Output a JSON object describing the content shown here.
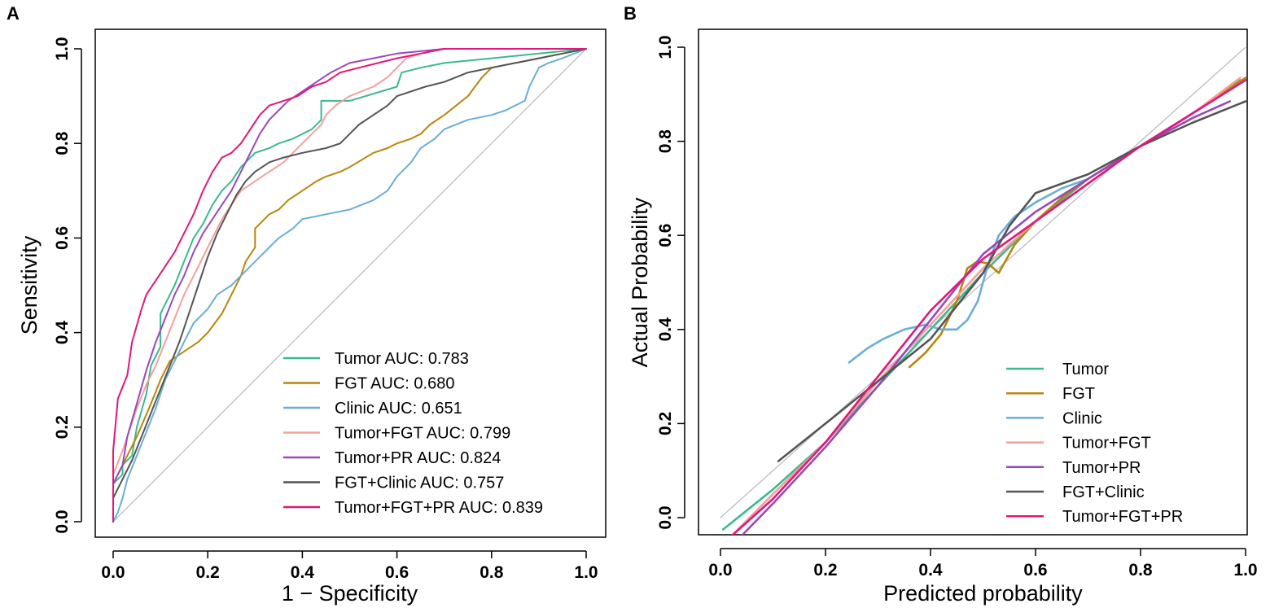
{
  "panels": {
    "a": {
      "letter": "A"
    },
    "b": {
      "letter": "B"
    }
  },
  "chart_data": [
    {
      "type": "line",
      "panel": "A",
      "xlabel": "1 − Specificity",
      "ylabel": "Sensitivity",
      "xlim": [
        0,
        1
      ],
      "ylim": [
        0,
        1
      ],
      "xticks": [
        "0.0",
        "0.2",
        "0.4",
        "0.6",
        "0.8",
        "1.0"
      ],
      "yticks": [
        "0.0",
        "0.2",
        "0.4",
        "0.6",
        "0.8",
        "1.0"
      ],
      "reference_line": "diagonal",
      "legend_position": "bottom-right",
      "series": [
        {
          "name": "Tumor",
          "label": "Tumor AUC: 0.783",
          "color": "#3cb98d",
          "x": [
            0,
            0,
            0.02,
            0.02,
            0.04,
            0.05,
            0.07,
            0.08,
            0.1,
            0.1,
            0.12,
            0.13,
            0.15,
            0.17,
            0.19,
            0.21,
            0.23,
            0.25,
            0.27,
            0.3,
            0.33,
            0.35,
            0.38,
            0.4,
            0.42,
            0.44,
            0.44,
            0.5,
            0.6,
            0.61,
            0.65,
            0.7,
            0.8,
            0.9,
            1.0
          ],
          "y": [
            0,
            0.08,
            0.1,
            0.12,
            0.14,
            0.2,
            0.27,
            0.33,
            0.37,
            0.44,
            0.48,
            0.5,
            0.55,
            0.6,
            0.63,
            0.67,
            0.7,
            0.72,
            0.75,
            0.78,
            0.79,
            0.8,
            0.81,
            0.82,
            0.83,
            0.85,
            0.89,
            0.89,
            0.92,
            0.95,
            0.96,
            0.97,
            0.98,
            0.99,
            1.0
          ]
        },
        {
          "name": "FGT",
          "label": "FGT AUC: 0.680",
          "color": "#b8860b",
          "x": [
            0,
            0,
            0.02,
            0.05,
            0.08,
            0.1,
            0.12,
            0.15,
            0.18,
            0.2,
            0.23,
            0.25,
            0.27,
            0.28,
            0.3,
            0.3,
            0.32,
            0.33,
            0.35,
            0.37,
            0.4,
            0.43,
            0.45,
            0.48,
            0.5,
            0.55,
            0.58,
            0.6,
            0.63,
            0.65,
            0.67,
            0.7,
            0.75,
            0.78,
            0.8,
            0.9,
            0.95,
            1.0
          ],
          "y": [
            0,
            0.08,
            0.12,
            0.18,
            0.25,
            0.3,
            0.34,
            0.36,
            0.38,
            0.4,
            0.44,
            0.48,
            0.52,
            0.55,
            0.58,
            0.62,
            0.64,
            0.65,
            0.66,
            0.68,
            0.7,
            0.72,
            0.73,
            0.74,
            0.75,
            0.78,
            0.79,
            0.8,
            0.81,
            0.82,
            0.84,
            0.86,
            0.9,
            0.94,
            0.96,
            0.98,
            0.99,
            1.0
          ]
        },
        {
          "name": "Clinic",
          "label": "Clinic AUC: 0.651",
          "color": "#6aaed6",
          "x": [
            0,
            0.01,
            0.02,
            0.03,
            0.05,
            0.07,
            0.09,
            0.11,
            0.13,
            0.15,
            0.17,
            0.2,
            0.22,
            0.25,
            0.28,
            0.3,
            0.33,
            0.35,
            0.38,
            0.4,
            0.45,
            0.5,
            0.55,
            0.58,
            0.6,
            0.63,
            0.65,
            0.68,
            0.7,
            0.75,
            0.8,
            0.83,
            0.85,
            0.87,
            0.88,
            0.89,
            0.9,
            0.92,
            0.95,
            1.0
          ],
          "y": [
            0,
            0.02,
            0.05,
            0.09,
            0.14,
            0.19,
            0.24,
            0.3,
            0.34,
            0.38,
            0.42,
            0.45,
            0.48,
            0.5,
            0.53,
            0.55,
            0.58,
            0.6,
            0.62,
            0.64,
            0.65,
            0.66,
            0.68,
            0.7,
            0.73,
            0.76,
            0.79,
            0.81,
            0.83,
            0.85,
            0.86,
            0.87,
            0.88,
            0.89,
            0.92,
            0.94,
            0.96,
            0.97,
            0.98,
            1.0
          ]
        },
        {
          "name": "Tumor+FGT",
          "label": "Tumor+FGT AUC: 0.799",
          "color": "#f4a09a",
          "x": [
            0,
            0,
            0.02,
            0.03,
            0.05,
            0.07,
            0.09,
            0.11,
            0.13,
            0.15,
            0.17,
            0.19,
            0.21,
            0.23,
            0.25,
            0.27,
            0.3,
            0.33,
            0.36,
            0.38,
            0.4,
            0.42,
            0.44,
            0.45,
            0.47,
            0.5,
            0.55,
            0.58,
            0.6,
            0.62,
            0.65,
            0.7,
            0.8,
            0.9,
            1.0
          ],
          "y": [
            0,
            0.1,
            0.15,
            0.18,
            0.24,
            0.29,
            0.33,
            0.38,
            0.43,
            0.48,
            0.52,
            0.56,
            0.6,
            0.64,
            0.67,
            0.7,
            0.72,
            0.74,
            0.76,
            0.78,
            0.8,
            0.82,
            0.84,
            0.86,
            0.88,
            0.9,
            0.92,
            0.94,
            0.96,
            0.98,
            0.99,
            1.0,
            1.0,
            1.0,
            1.0
          ]
        },
        {
          "name": "Tumor+PR",
          "label": "Tumor+PR AUC: 0.824",
          "color": "#9b48b8",
          "x": [
            0,
            0,
            0.02,
            0.03,
            0.05,
            0.07,
            0.09,
            0.11,
            0.13,
            0.15,
            0.17,
            0.19,
            0.21,
            0.23,
            0.25,
            0.27,
            0.29,
            0.31,
            0.33,
            0.35,
            0.37,
            0.4,
            0.43,
            0.46,
            0.5,
            0.55,
            0.6,
            0.7,
            0.8,
            0.9,
            1.0
          ],
          "y": [
            0,
            0.08,
            0.12,
            0.18,
            0.25,
            0.32,
            0.38,
            0.43,
            0.48,
            0.52,
            0.57,
            0.61,
            0.64,
            0.67,
            0.7,
            0.74,
            0.78,
            0.82,
            0.85,
            0.87,
            0.89,
            0.91,
            0.93,
            0.95,
            0.97,
            0.98,
            0.99,
            1.0,
            1.0,
            1.0,
            1.0
          ]
        },
        {
          "name": "FGT+Clinic",
          "label": "FGT+Clinic AUC: 0.757",
          "color": "#555555",
          "x": [
            0,
            0,
            0.02,
            0.04,
            0.06,
            0.08,
            0.1,
            0.12,
            0.14,
            0.16,
            0.18,
            0.2,
            0.22,
            0.24,
            0.26,
            0.28,
            0.3,
            0.33,
            0.36,
            0.4,
            0.45,
            0.48,
            0.5,
            0.52,
            0.55,
            0.58,
            0.6,
            0.63,
            0.66,
            0.7,
            0.75,
            0.8,
            0.85,
            0.9,
            0.95,
            1.0
          ],
          "y": [
            0,
            0.05,
            0.09,
            0.13,
            0.18,
            0.23,
            0.28,
            0.33,
            0.38,
            0.44,
            0.5,
            0.56,
            0.61,
            0.65,
            0.69,
            0.72,
            0.74,
            0.76,
            0.77,
            0.78,
            0.79,
            0.8,
            0.82,
            0.84,
            0.86,
            0.88,
            0.9,
            0.91,
            0.92,
            0.93,
            0.95,
            0.96,
            0.97,
            0.98,
            0.99,
            1.0
          ]
        },
        {
          "name": "Tumor+FGT+PR",
          "label": "Tumor+FGT+PR AUC: 0.839",
          "color": "#e0187a",
          "x": [
            0,
            0,
            0.01,
            0.03,
            0.04,
            0.06,
            0.07,
            0.09,
            0.11,
            0.13,
            0.15,
            0.17,
            0.19,
            0.21,
            0.23,
            0.25,
            0.27,
            0.29,
            0.31,
            0.33,
            0.36,
            0.39,
            0.42,
            0.45,
            0.48,
            0.52,
            0.56,
            0.6,
            0.65,
            0.7,
            0.8,
            0.9,
            1.0
          ],
          "y": [
            0,
            0.15,
            0.26,
            0.31,
            0.38,
            0.45,
            0.48,
            0.51,
            0.54,
            0.57,
            0.61,
            0.65,
            0.7,
            0.74,
            0.77,
            0.78,
            0.8,
            0.83,
            0.86,
            0.88,
            0.89,
            0.9,
            0.92,
            0.93,
            0.95,
            0.96,
            0.97,
            0.98,
            0.99,
            1.0,
            1.0,
            1.0,
            1.0
          ]
        }
      ]
    },
    {
      "type": "line",
      "panel": "B",
      "xlabel": "Predicted probability",
      "ylabel": "Actual Probability",
      "xlim": [
        0,
        1
      ],
      "ylim": [
        -0.03,
        1.03
      ],
      "xticks": [
        "0.0",
        "0.2",
        "0.4",
        "0.6",
        "0.8",
        "1.0"
      ],
      "yticks": [
        "0.0",
        "0.2",
        "0.4",
        "0.6",
        "0.8",
        "1.0"
      ],
      "reference_line": "diagonal",
      "legend_position": "bottom-right",
      "series": [
        {
          "name": "Tumor",
          "label": "Tumor",
          "color": "#3cb98d",
          "x": [
            0.005,
            0.1,
            0.2,
            0.3,
            0.4,
            0.5,
            0.6,
            0.7,
            0.8,
            0.9,
            0.99
          ],
          "y": [
            -0.025,
            0.06,
            0.16,
            0.28,
            0.4,
            0.52,
            0.63,
            0.72,
            0.79,
            0.86,
            0.93
          ]
        },
        {
          "name": "FGT",
          "label": "FGT",
          "color": "#b8860b",
          "x": [
            0.36,
            0.39,
            0.42,
            0.45,
            0.47,
            0.49,
            0.51,
            0.53,
            0.56,
            0.6,
            0.65,
            0.7,
            0.8,
            0.9,
            1.0
          ],
          "y": [
            0.32,
            0.35,
            0.39,
            0.46,
            0.53,
            0.545,
            0.54,
            0.52,
            0.58,
            0.63,
            0.68,
            0.72,
            0.79,
            0.86,
            0.935
          ]
        },
        {
          "name": "Clinic",
          "label": "Clinic",
          "color": "#6aaed6",
          "x": [
            0.245,
            0.28,
            0.31,
            0.35,
            0.39,
            0.42,
            0.45,
            0.47,
            0.49,
            0.51,
            0.53,
            0.56,
            0.6,
            0.65,
            0.7
          ],
          "y": [
            0.33,
            0.36,
            0.38,
            0.4,
            0.41,
            0.4,
            0.4,
            0.42,
            0.46,
            0.54,
            0.6,
            0.64,
            0.67,
            0.7,
            0.72
          ]
        },
        {
          "name": "Tumor+FGT",
          "label": "Tumor+FGT",
          "color": "#f4a09a",
          "x": [
            0.02,
            0.1,
            0.2,
            0.3,
            0.4,
            0.5,
            0.6,
            0.7,
            0.8,
            0.9,
            0.99
          ],
          "y": [
            -0.04,
            0.05,
            0.16,
            0.29,
            0.41,
            0.53,
            0.63,
            0.71,
            0.79,
            0.86,
            0.935
          ]
        },
        {
          "name": "Tumor+PR",
          "label": "Tumor+PR",
          "color": "#9b48b8",
          "x": [
            0.03,
            0.1,
            0.2,
            0.3,
            0.4,
            0.5,
            0.6,
            0.7,
            0.8,
            0.9,
            0.97
          ],
          "y": [
            -0.05,
            0.03,
            0.15,
            0.28,
            0.42,
            0.56,
            0.65,
            0.72,
            0.79,
            0.85,
            0.885
          ]
        },
        {
          "name": "FGT+Clinic",
          "label": "FGT+Clinic",
          "color": "#555555",
          "x": [
            0.11,
            0.2,
            0.3,
            0.4,
            0.5,
            0.55,
            0.6,
            0.65,
            0.7,
            0.8,
            0.9,
            1.0
          ],
          "y": [
            0.12,
            0.2,
            0.29,
            0.38,
            0.52,
            0.62,
            0.69,
            0.71,
            0.73,
            0.79,
            0.84,
            0.885
          ]
        },
        {
          "name": "Tumor+FGT+PR",
          "label": "Tumor+FGT+PR",
          "color": "#e0187a",
          "x": [
            0.02,
            0.1,
            0.2,
            0.3,
            0.4,
            0.5,
            0.6,
            0.7,
            0.8,
            0.9,
            1.0
          ],
          "y": [
            -0.04,
            0.04,
            0.16,
            0.3,
            0.44,
            0.55,
            0.63,
            0.71,
            0.79,
            0.86,
            0.93
          ]
        }
      ]
    }
  ]
}
